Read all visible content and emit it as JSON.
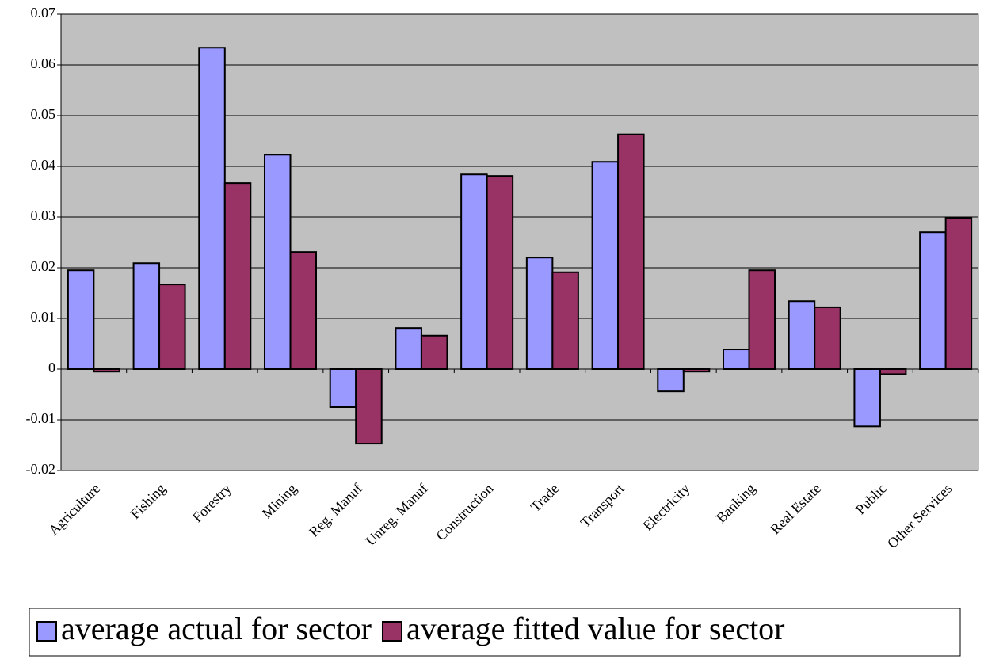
{
  "chart_data": {
    "type": "bar",
    "categories": [
      "Agriculture",
      "Fishing",
      "Forestry",
      "Mining",
      "Reg. Manuf",
      "Unreg. Manuf",
      "Construction",
      "Trade",
      "Transport",
      "Electricity",
      "Banking",
      "Real Estate",
      "Public",
      "Other Services"
    ],
    "series": [
      {
        "name": "average actual for sector",
        "color": "#9999ff",
        "values": [
          0.0195,
          0.0209,
          0.0634,
          0.0423,
          -0.0075,
          0.0081,
          0.0384,
          0.022,
          0.0409,
          -0.0044,
          0.0039,
          0.0134,
          -0.0113,
          0.027
        ]
      },
      {
        "name": "average fitted value for sector",
        "color": "#993366",
        "values": [
          -0.0005,
          0.0167,
          0.0367,
          0.0231,
          -0.0147,
          0.0066,
          0.0381,
          0.0191,
          0.0463,
          -0.0005,
          0.0195,
          0.0122,
          -0.001,
          0.0298
        ]
      }
    ],
    "ylim": [
      -0.02,
      0.07
    ],
    "yticks": [
      -0.02,
      -0.01,
      0,
      0.01,
      0.02,
      0.03,
      0.04,
      0.05,
      0.06,
      0.07
    ],
    "grid": true,
    "legend": "bottom",
    "background": "#c0c0c0"
  }
}
